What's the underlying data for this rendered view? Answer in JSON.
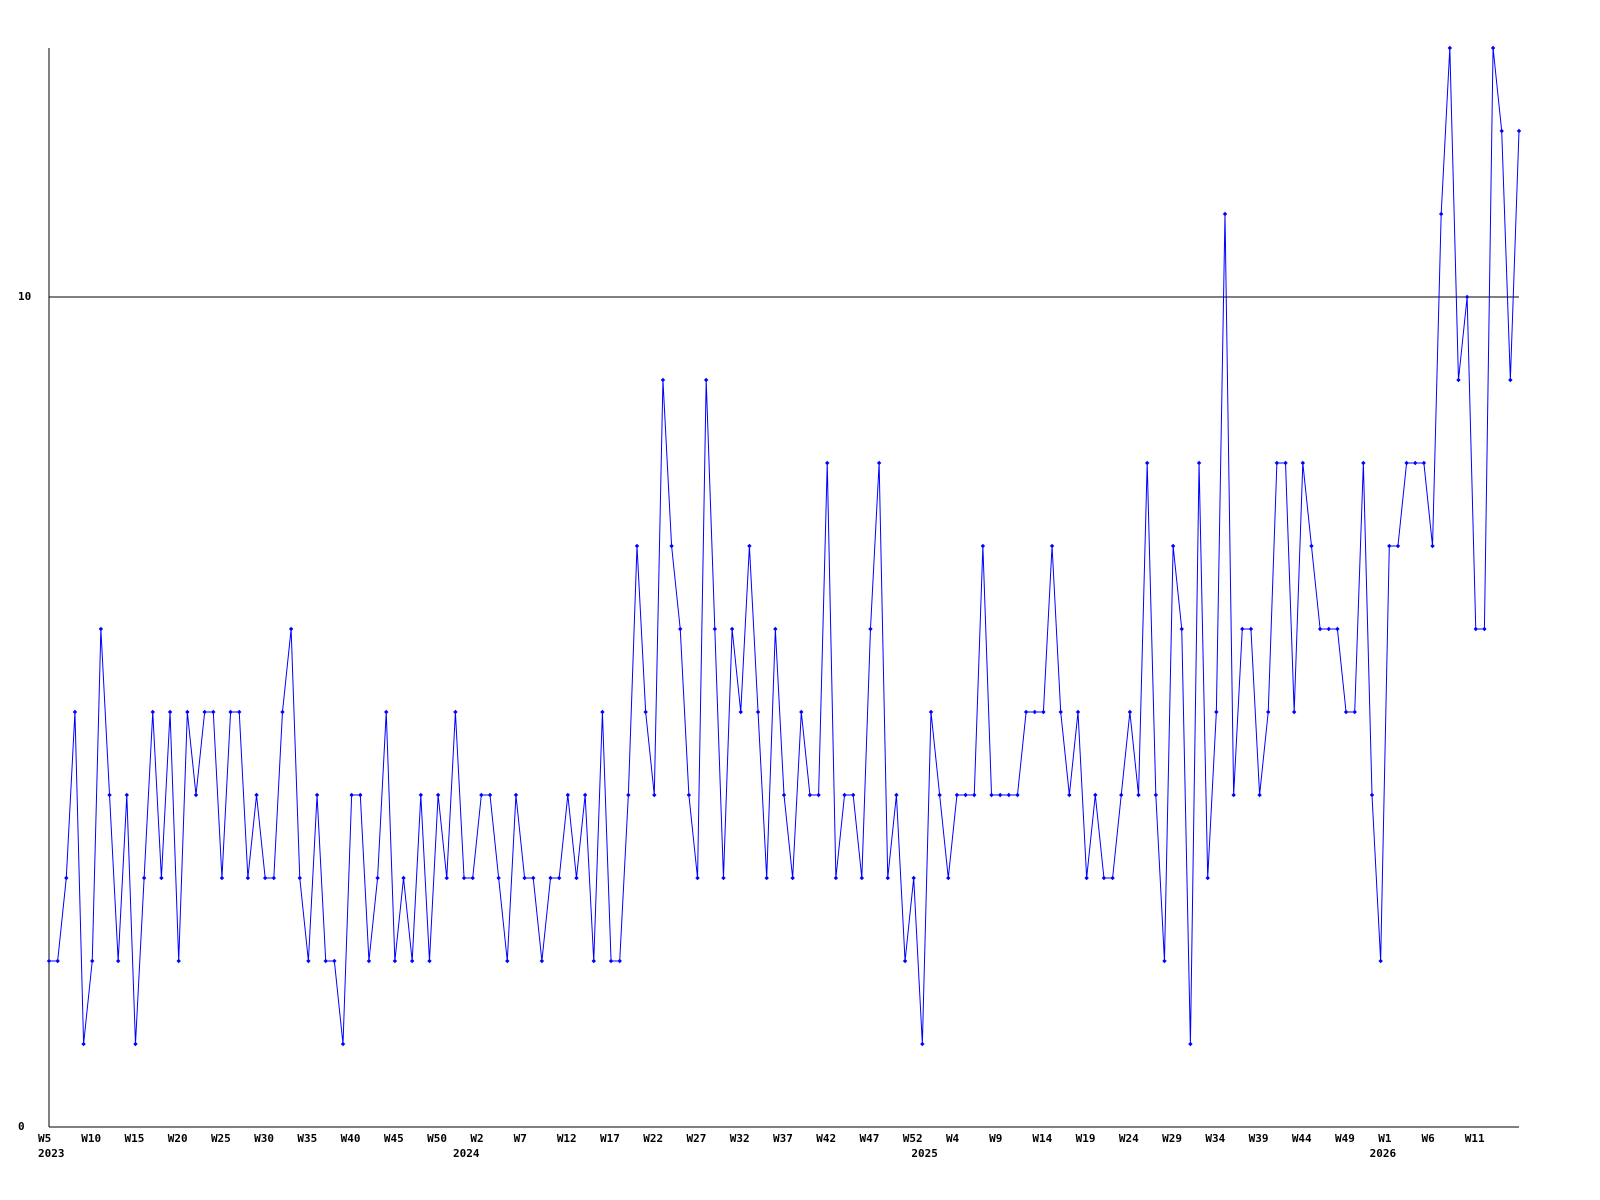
{
  "chart_data": {
    "type": "line",
    "categories": [
      "W5",
      null,
      null,
      null,
      null,
      "W10",
      null,
      null,
      null,
      null,
      "W15",
      null,
      null,
      null,
      null,
      "W20",
      null,
      null,
      null,
      null,
      "W25",
      null,
      null,
      null,
      null,
      "W30",
      null,
      null,
      null,
      null,
      "W35",
      null,
      null,
      null,
      null,
      "W40",
      null,
      null,
      null,
      null,
      "W45",
      null,
      null,
      null,
      null,
      "W50",
      null,
      null,
      null,
      null,
      "W2",
      null,
      null,
      null,
      null,
      "W7",
      null,
      null,
      null,
      null,
      "W12",
      null,
      null,
      null,
      null,
      "W17",
      null,
      null,
      null,
      null,
      "W22",
      null,
      null,
      null,
      null,
      "W27",
      null,
      null,
      null,
      null,
      "W32",
      null,
      null,
      null,
      null,
      "W37",
      null,
      null,
      null,
      null,
      "W42",
      null,
      null,
      null,
      null,
      "W47",
      null,
      null,
      null,
      null,
      "W52",
      null,
      null,
      null,
      null,
      "W4",
      null,
      null,
      null,
      null,
      "W9",
      null,
      null,
      null,
      null,
      "W14",
      null,
      null,
      null,
      null,
      "W19",
      null,
      null,
      null,
      null,
      "W24",
      null,
      null,
      null,
      null,
      "W29",
      null,
      null,
      null,
      null,
      "W34",
      null,
      null,
      null,
      null,
      "W39",
      null,
      null,
      null,
      null,
      "W44",
      null,
      null,
      null,
      null,
      "W49",
      null,
      null,
      null,
      null,
      "W1",
      null,
      null,
      null,
      null,
      "W6",
      null,
      null,
      null,
      null,
      "W11",
      null,
      null,
      null,
      null,
      null
    ],
    "year_labels": [
      "2023",
      null,
      null,
      null,
      null,
      null,
      null,
      null,
      null,
      null,
      null,
      null,
      null,
      null,
      null,
      null,
      null,
      null,
      null,
      null,
      null,
      null,
      null,
      null,
      null,
      null,
      null,
      null,
      null,
      null,
      null,
      null,
      null,
      null,
      null,
      null,
      null,
      null,
      null,
      null,
      null,
      null,
      null,
      null,
      null,
      null,
      null,
      null,
      "2024",
      null,
      null,
      null,
      null,
      null,
      null,
      null,
      null,
      null,
      null,
      null,
      null,
      null,
      null,
      null,
      null,
      null,
      null,
      null,
      null,
      null,
      null,
      null,
      null,
      null,
      null,
      null,
      null,
      null,
      null,
      null,
      null,
      null,
      null,
      null,
      null,
      null,
      null,
      null,
      null,
      null,
      null,
      null,
      null,
      null,
      null,
      null,
      null,
      null,
      null,
      null,
      null,
      "2025",
      null,
      null,
      null,
      null,
      null,
      null,
      null,
      null,
      null,
      null,
      null,
      null,
      null,
      null,
      null,
      null,
      null,
      null,
      null,
      null,
      null,
      null,
      null,
      null,
      null,
      null,
      null,
      null,
      null,
      null,
      null,
      null,
      null,
      null,
      null,
      null,
      null,
      null,
      null,
      null,
      null,
      null,
      null,
      null,
      null,
      null,
      null,
      null,
      null,
      null,
      null,
      null,
      "2026",
      null,
      null,
      null,
      null,
      null,
      null,
      null,
      null,
      null,
      null,
      null,
      null,
      null,
      null,
      null,
      null
    ],
    "series": [
      {
        "color": "#0000ff",
        "values": [
          2,
          2,
          3,
          5,
          1,
          2,
          6,
          4,
          2,
          4,
          1,
          3,
          5,
          3,
          5,
          2,
          5,
          4,
          5,
          5,
          3,
          5,
          5,
          3,
          4,
          3,
          3,
          5,
          6,
          3,
          2,
          4,
          2,
          2,
          1,
          4,
          4,
          2,
          3,
          5,
          2,
          3,
          2,
          4,
          2,
          4,
          3,
          5,
          3,
          3,
          4,
          4,
          3,
          2,
          4,
          3,
          3,
          2,
          3,
          3,
          4,
          3,
          4,
          2,
          5,
          2,
          2,
          4,
          7,
          5,
          4,
          9,
          7,
          6,
          4,
          3,
          9,
          6,
          3,
          6,
          5,
          7,
          5,
          3,
          6,
          4,
          3,
          5,
          4,
          4,
          8,
          3,
          4,
          4,
          3,
          6,
          8,
          3,
          4,
          2,
          3,
          1,
          5,
          4,
          3,
          4,
          4,
          4,
          7,
          4,
          4,
          4,
          4,
          5,
          5,
          5,
          7,
          5,
          4,
          5,
          3,
          4,
          3,
          3,
          4,
          5,
          4,
          8,
          4,
          2,
          7,
          6,
          1,
          8,
          3,
          5,
          11,
          4,
          6,
          6,
          4,
          5,
          8,
          8,
          5,
          8,
          7,
          6,
          6,
          6,
          5,
          5,
          8,
          4,
          2,
          7,
          7,
          8,
          8,
          8,
          7,
          11,
          13,
          9,
          10,
          6,
          6,
          13,
          12,
          9,
          12
        ]
      }
    ],
    "ylim": [
      0,
      13
    ],
    "yticks": [
      0,
      10
    ],
    "grid": true
  }
}
